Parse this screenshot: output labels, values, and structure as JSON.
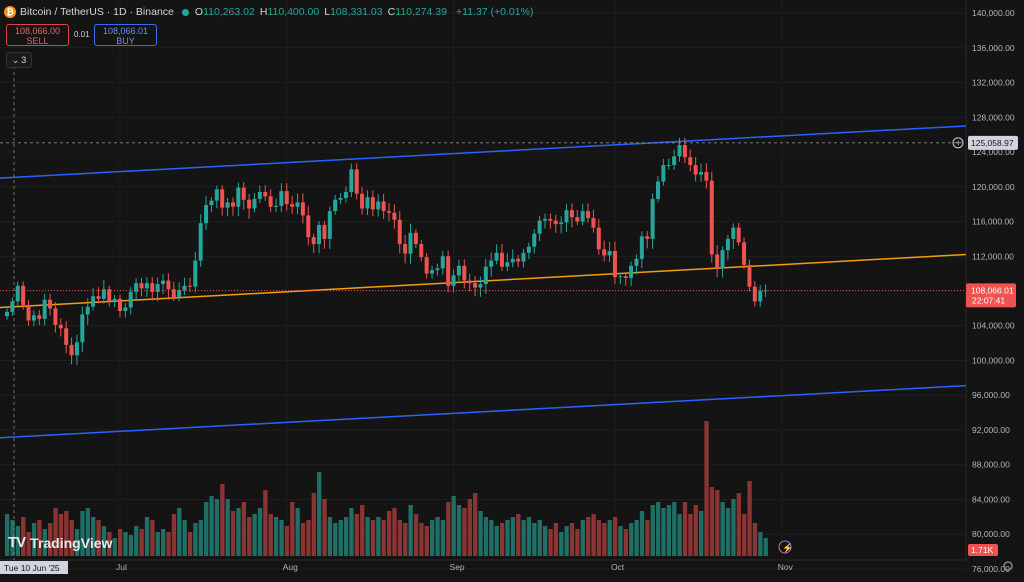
{
  "header": {
    "coin_icon": "bitcoin-icon",
    "title": "Bitcoin / TetherUS · 1D · Binance",
    "ohlc": [
      {
        "k": "O",
        "v": "110,263.02"
      },
      {
        "k": "H",
        "v": "110,400.00"
      },
      {
        "k": "L",
        "v": "108,331.03"
      },
      {
        "k": "C",
        "v": "110,274.39"
      }
    ],
    "change": "+11.37 (+0.01%)"
  },
  "trade": {
    "sell_price": "108,066.00",
    "sell_label": "SELL",
    "buy_price": "108,066.01",
    "buy_label": "BUY",
    "spread": "0.01"
  },
  "indicators_count": "3",
  "branding": {
    "logo": "tradingview-logo",
    "name": "TradingView"
  },
  "price_tag": {
    "price": "108,066.01",
    "countdown": "22:07:41"
  },
  "high_marker": {
    "price": "125,058.97"
  },
  "volume_tag": "1.71K",
  "crosshair_date": "Tue 10 Jun '25",
  "colors": {
    "up": "#26a69a",
    "down": "#ef5350",
    "channel": "#2962ff",
    "midline": "#f59e0b",
    "bg": "#141414"
  },
  "chart_data": {
    "type": "candlestick",
    "y_ticks": [
      "140,000.00",
      "136,000.00",
      "132,000.00",
      "128,000.00",
      "124,000.00",
      "120,000.00",
      "116,000.00",
      "112,000.00",
      "108,000.00",
      "104,000.00",
      "100,000.00",
      "96,000.00",
      "92,000.00",
      "88,000.00",
      "84,000.00",
      "80,000.00",
      "76,000.00"
    ],
    "x_ticks": [
      "Jul",
      "Aug",
      "Sep",
      "Oct",
      "Nov"
    ],
    "ylim": [
      74500,
      141500
    ],
    "x_start": "2025-06-10",
    "candles_close": [
      105600,
      106800,
      108600,
      106400,
      104600,
      105200,
      104800,
      107000,
      106000,
      104100,
      103700,
      101800,
      100600,
      102100,
      105300,
      106200,
      107400,
      107100,
      108200,
      106800,
      107100,
      105700,
      106100,
      107900,
      108900,
      108300,
      108900,
      107900,
      108800,
      109200,
      108200,
      107300,
      108100,
      108600,
      108500,
      111500,
      115800,
      117900,
      118400,
      119700,
      117600,
      118200,
      117700,
      119900,
      118500,
      117500,
      118600,
      119400,
      118900,
      117700,
      117800,
      119500,
      118000,
      117700,
      118200,
      116700,
      114200,
      113400,
      115600,
      114000,
      117200,
      118500,
      118700,
      119400,
      122000,
      119200,
      117500,
      118800,
      117400,
      118300,
      117200,
      117000,
      116200,
      113400,
      112300,
      114700,
      113400,
      111900,
      110000,
      110400,
      110600,
      112000,
      108600,
      109800,
      110900,
      109200,
      108900,
      108400,
      108800,
      110800,
      111500,
      112400,
      110800,
      111300,
      111700,
      111400,
      112400,
      113100,
      114600,
      116100,
      116300,
      116100,
      115700,
      115900,
      117300,
      116500,
      116000,
      117200,
      116400,
      115300,
      112800,
      112100,
      112600,
      109600,
      109700,
      109500,
      110900,
      111700,
      114300,
      114000,
      118600,
      120600,
      122500,
      122500,
      123500,
      124800,
      123400,
      122500,
      121400,
      121700,
      120700,
      112200,
      110600,
      112700,
      114000,
      115300,
      113600,
      111000,
      108500,
      106800,
      108000,
      108066.01
    ],
    "volumes_k": [
      1.4,
      1.2,
      1.0,
      1.3,
      0.8,
      1.1,
      1.2,
      0.9,
      1.1,
      1.6,
      1.4,
      1.5,
      1.2,
      0.9,
      1.5,
      1.6,
      1.3,
      1.2,
      1.0,
      0.8,
      0.6,
      0.9,
      0.8,
      0.7,
      1.0,
      0.9,
      1.3,
      1.2,
      0.8,
      0.9,
      0.8,
      1.4,
      1.6,
      1.2,
      0.8,
      1.1,
      1.2,
      1.8,
      2.0,
      1.9,
      2.4,
      1.9,
      1.5,
      1.6,
      1.8,
      1.3,
      1.4,
      1.6,
      2.2,
      1.4,
      1.3,
      1.2,
      1.0,
      1.8,
      1.6,
      1.1,
      1.2,
      2.1,
      2.8,
      1.9,
      1.3,
      1.1,
      1.2,
      1.3,
      1.6,
      1.4,
      1.7,
      1.3,
      1.2,
      1.3,
      1.2,
      1.5,
      1.6,
      1.2,
      1.1,
      1.7,
      1.4,
      1.1,
      1.0,
      1.2,
      1.3,
      1.2,
      1.8,
      2.0,
      1.7,
      1.6,
      1.9,
      2.1,
      1.5,
      1.3,
      1.2,
      1.0,
      1.1,
      1.2,
      1.3,
      1.4,
      1.2,
      1.3,
      1.1,
      1.2,
      1.0,
      0.9,
      1.1,
      0.8,
      1.0,
      1.1,
      0.9,
      1.2,
      1.3,
      1.4,
      1.2,
      1.1,
      1.2,
      1.3,
      1.0,
      0.9,
      1.1,
      1.2,
      1.5,
      1.2,
      1.7,
      1.8,
      1.6,
      1.7,
      1.8,
      1.4,
      1.8,
      1.4,
      1.7,
      1.5,
      4.5,
      2.3,
      2.2,
      1.8,
      1.6,
      1.9,
      2.1,
      1.4,
      2.5,
      1.1,
      0.8,
      0.6
    ],
    "channel_upper": [
      [
        0,
        121000
      ],
      [
        966,
        127000
      ]
    ],
    "channel_lower": [
      [
        0,
        91100
      ],
      [
        966,
        97100
      ]
    ],
    "midline": [
      [
        0,
        106100
      ],
      [
        966,
        112200
      ]
    ],
    "crosshair_price": "125,058.97"
  }
}
